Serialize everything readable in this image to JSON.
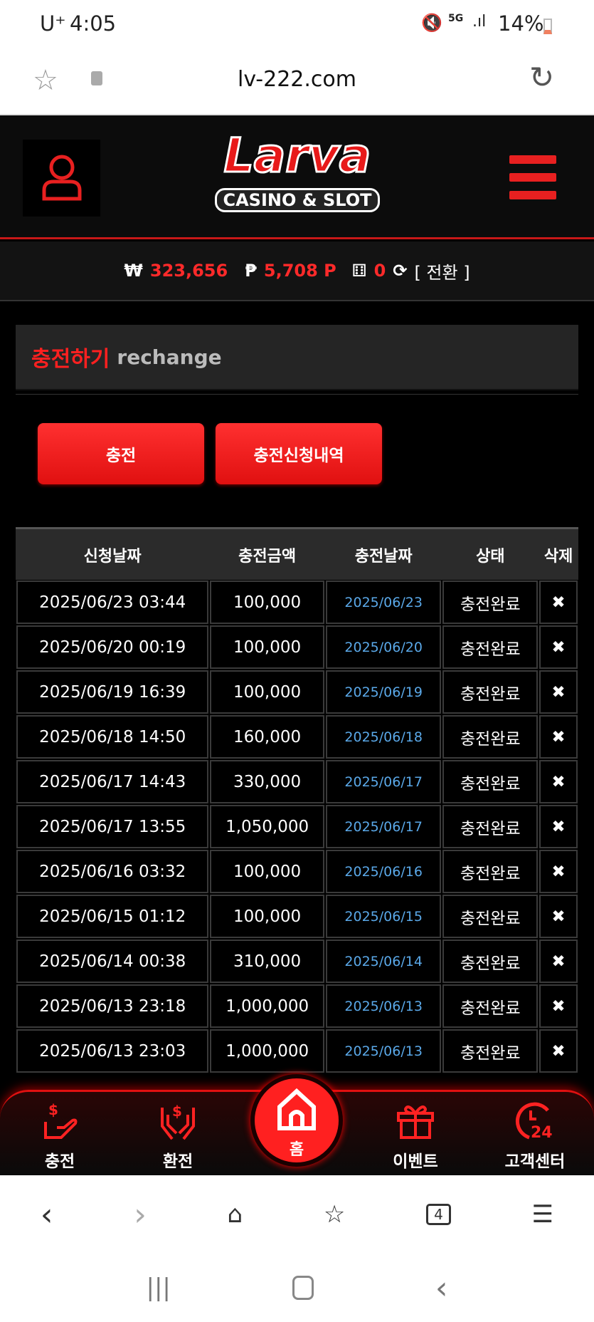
{
  "status": {
    "carrier": "U⁺",
    "time": "4:05",
    "battery": "14%"
  },
  "browser": {
    "url": "lv-222.com",
    "tabs_count": "4"
  },
  "header": {
    "logo_text": "Larva",
    "logo_sub": "CASINO & SLOT"
  },
  "balance": {
    "won_symbol": "₩",
    "won": "323,656",
    "point_symbol": "₱",
    "points": "5,708 P",
    "dice": "0",
    "convert": "[ 전환 ]"
  },
  "title": {
    "ko": "충전하기",
    "en": "rechange"
  },
  "buttons": {
    "charge": "충전",
    "history": "충전신청내역"
  },
  "table": {
    "headers": [
      "신청날짜",
      "충전금액",
      "충전날짜",
      "상태",
      "삭제"
    ],
    "rows": [
      [
        "2025/06/23 03:44",
        "100,000",
        "2025/06/23",
        "충전완료"
      ],
      [
        "2025/06/20 00:19",
        "100,000",
        "2025/06/20",
        "충전완료"
      ],
      [
        "2025/06/19 16:39",
        "100,000",
        "2025/06/19",
        "충전완료"
      ],
      [
        "2025/06/18 14:50",
        "160,000",
        "2025/06/18",
        "충전완료"
      ],
      [
        "2025/06/17 14:43",
        "330,000",
        "2025/06/17",
        "충전완료"
      ],
      [
        "2025/06/17 13:55",
        "1,050,000",
        "2025/06/17",
        "충전완료"
      ],
      [
        "2025/06/16 03:32",
        "100,000",
        "2025/06/16",
        "충전완료"
      ],
      [
        "2025/06/15 01:12",
        "100,000",
        "2025/06/15",
        "충전완료"
      ],
      [
        "2025/06/14 00:38",
        "310,000",
        "2025/06/14",
        "충전완료"
      ],
      [
        "2025/06/13 23:18",
        "1,000,000",
        "2025/06/13",
        "충전완료"
      ],
      [
        "2025/06/13 23:03",
        "1,000,000",
        "2025/06/13",
        "충전완료"
      ]
    ],
    "delete_icon": "✖"
  },
  "bottom_nav": {
    "charge": "충전",
    "exchange": "환전",
    "home": "홈",
    "event": "이벤트",
    "support": "고객센터"
  },
  "colors": {
    "accent": "#ff2020",
    "link": "#5aa8e8"
  }
}
